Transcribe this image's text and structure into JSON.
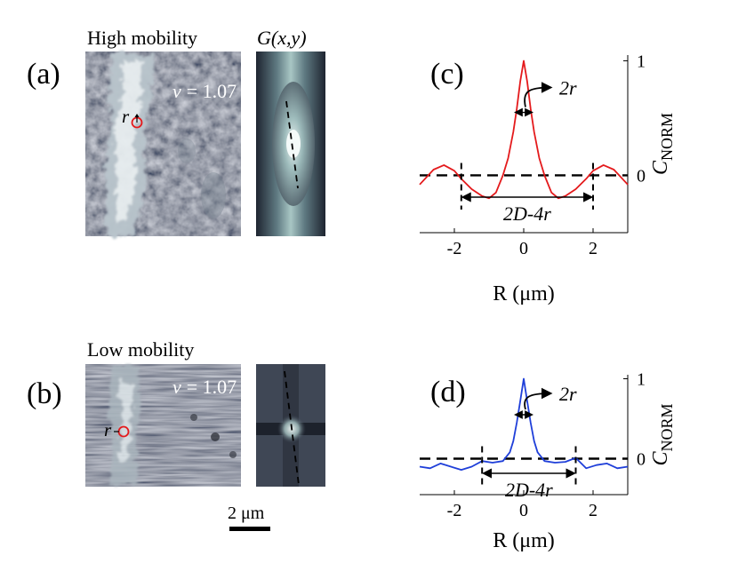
{
  "figure": {
    "panel_a": {
      "label": "(a)",
      "title": "High mobility",
      "nu_symbol": "ν",
      "nu_value": "= 1.07",
      "radius_label": "r"
    },
    "panel_a_corr": {
      "title": "G(x,y)"
    },
    "panel_b": {
      "label": "(b)",
      "title": "Low mobility",
      "nu_symbol": "ν",
      "nu_value": "= 1.07",
      "radius_label": "r"
    },
    "scale_bar": {
      "label": "2 μm",
      "length_um": 2
    },
    "colors": {
      "red": "#e41a1c",
      "blue": "#1f3fd9",
      "image_dark": "#454b5a",
      "image_light": "#dfe6ea"
    }
  },
  "chart_data": [
    {
      "id": "c",
      "panel_label": "(c)",
      "type": "line",
      "series_color": "#e41a1c",
      "xlabel": "R (μm)",
      "ylabel": "C_NORM",
      "xlim": [
        -3,
        3
      ],
      "ylim": [
        -0.5,
        1.05
      ],
      "xticks": [
        -2,
        0,
        2
      ],
      "xtick_labels": [
        "-2",
        "0",
        "2"
      ],
      "yticks": [
        0,
        1
      ],
      "ytick_labels": [
        "0",
        "1"
      ],
      "x": [
        -3.0,
        -2.6,
        -2.3,
        -2.0,
        -1.8,
        -1.5,
        -1.2,
        -1.0,
        -0.8,
        -0.6,
        -0.45,
        -0.3,
        -0.2,
        -0.1,
        0.0,
        0.1,
        0.2,
        0.3,
        0.45,
        0.6,
        0.8,
        1.0,
        1.2,
        1.5,
        1.8,
        2.0,
        2.3,
        2.6,
        3.0
      ],
      "y": [
        -0.08,
        0.05,
        0.09,
        0.04,
        -0.03,
        -0.12,
        -0.18,
        -0.2,
        -0.15,
        0.0,
        0.15,
        0.38,
        0.58,
        0.82,
        1.0,
        0.82,
        0.58,
        0.38,
        0.15,
        0.0,
        -0.15,
        -0.2,
        -0.18,
        -0.12,
        -0.03,
        0.04,
        0.09,
        0.05,
        -0.08
      ],
      "zero_line": 0,
      "markers_x": [
        -1.8,
        2.0
      ],
      "annotation_top": "2r",
      "annotation_bottom": "2D-4r"
    },
    {
      "id": "d",
      "panel_label": "(d)",
      "type": "line",
      "series_color": "#1f3fd9",
      "xlabel": "R (μm)",
      "ylabel": "C_NORM",
      "xlim": [
        -3,
        3
      ],
      "ylim": [
        -0.45,
        1.05
      ],
      "xticks": [
        -2,
        0,
        2
      ],
      "xtick_labels": [
        "-2",
        "0",
        "2"
      ],
      "yticks": [
        0,
        1
      ],
      "ytick_labels": [
        "0",
        "1"
      ],
      "x": [
        -3.0,
        -2.7,
        -2.4,
        -2.1,
        -1.8,
        -1.5,
        -1.2,
        -0.9,
        -0.6,
        -0.4,
        -0.3,
        -0.2,
        -0.1,
        0.0,
        0.1,
        0.2,
        0.3,
        0.4,
        0.6,
        0.9,
        1.2,
        1.5,
        1.8,
        2.1,
        2.4,
        2.7,
        3.0
      ],
      "y": [
        -0.1,
        -0.12,
        -0.06,
        -0.1,
        -0.14,
        -0.1,
        -0.03,
        -0.05,
        -0.03,
        0.08,
        0.22,
        0.45,
        0.72,
        1.0,
        0.72,
        0.45,
        0.22,
        0.08,
        -0.03,
        -0.05,
        -0.04,
        0.01,
        -0.12,
        -0.08,
        -0.06,
        -0.12,
        -0.1
      ],
      "zero_line": 0,
      "markers_x": [
        -1.2,
        1.5
      ],
      "annotation_top": "2r",
      "annotation_bottom": "2D-4r"
    }
  ]
}
